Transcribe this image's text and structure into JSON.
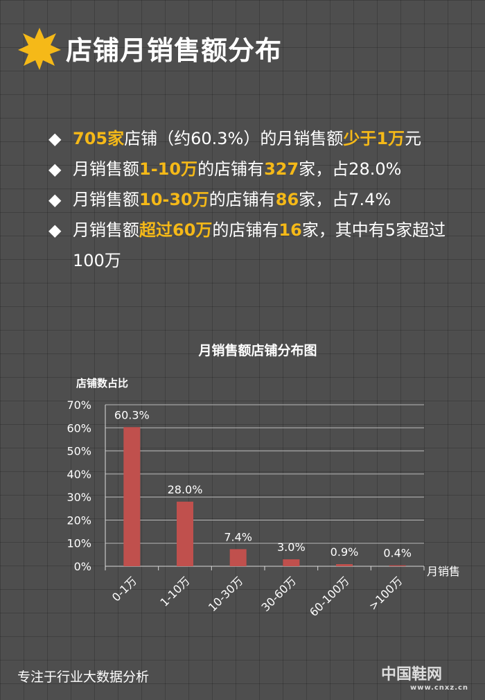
{
  "title": "店铺月销售额分布",
  "bullets": [
    [
      {
        "t": "705家",
        "h": true
      },
      {
        "t": "店铺（约60.3%）的月销售额",
        "h": false
      },
      {
        "t": "少于1万",
        "h": true
      },
      {
        "t": "元",
        "h": false
      }
    ],
    [
      {
        "t": "月销售额",
        "h": false
      },
      {
        "t": "1-10万",
        "h": true
      },
      {
        "t": "的店铺有",
        "h": false
      },
      {
        "t": "327",
        "h": true
      },
      {
        "t": "家，占28.0%",
        "h": false
      }
    ],
    [
      {
        "t": "月销售额",
        "h": false
      },
      {
        "t": "10-30万",
        "h": true
      },
      {
        "t": "的店铺有",
        "h": false
      },
      {
        "t": "86",
        "h": true
      },
      {
        "t": "家，占7.4%",
        "h": false
      }
    ],
    [
      {
        "t": "月销售额",
        "h": false
      },
      {
        "t": "超过60万",
        "h": true
      },
      {
        "t": "的店铺有",
        "h": false
      },
      {
        "t": "16",
        "h": true
      },
      {
        "t": "家，其中有5家超过100万",
        "h": false
      }
    ]
  ],
  "chart_data": {
    "type": "bar",
    "title": "月销售额店铺分布图",
    "ylabel": "店铺数占比",
    "xlabel": "月销售",
    "categories": [
      "0-1万",
      "1-10万",
      "10-30万",
      "30-60万",
      "60-100万",
      ">100万"
    ],
    "values": [
      60.3,
      28.0,
      7.4,
      3.0,
      0.9,
      0.4
    ],
    "data_labels": [
      "60.3%",
      "28.0%",
      "7.4%",
      "3.0%",
      "0.9%",
      "0.4%"
    ],
    "yticks": [
      "0%",
      "10%",
      "20%",
      "30%",
      "40%",
      "50%",
      "60%",
      "70%"
    ],
    "ylim": [
      0,
      70
    ],
    "grid": true,
    "bar_color": "#c0504d"
  },
  "footer": "专注于行业大数据分析",
  "logo": {
    "name": "中国鞋网",
    "url": "www.cnxz.cn"
  },
  "colors": {
    "highlight": "#f5b918",
    "star": "#f5b918"
  }
}
